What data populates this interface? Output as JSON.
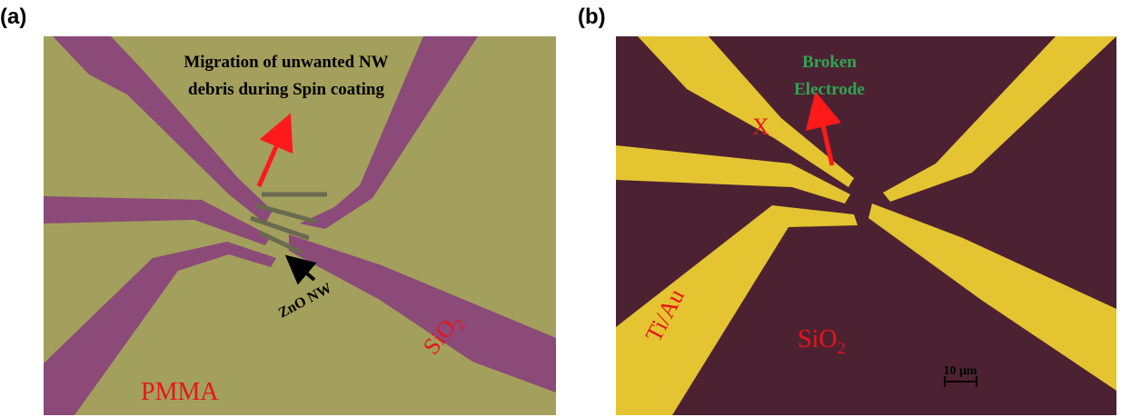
{
  "panel_a": {
    "label": "(a)",
    "annotation": [
      "Migration of unwanted NW",
      "debris during Spin coating"
    ],
    "nanowire_label": "ZnO NW",
    "substrate_label": {
      "text": "SiO",
      "subscript": "2"
    },
    "resist_label": "PMMA"
  },
  "panel_b": {
    "label": "(b)",
    "annotation": [
      "Broken",
      "Electrode"
    ],
    "mark_label": "X",
    "electrode_label": "Ti/Au",
    "substrate_label": {
      "text": "SiO",
      "subscript": "2"
    },
    "scale_bar": "10 μm"
  }
}
